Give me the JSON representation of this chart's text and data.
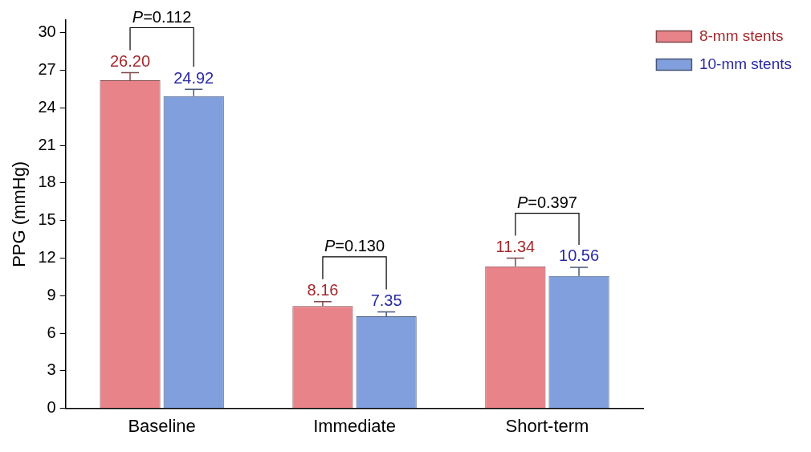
{
  "chart_data": {
    "type": "bar",
    "ylabel": "PPG (mmHg)",
    "categories": [
      "Baseline",
      "Immediate",
      "Short-term"
    ],
    "series": [
      {
        "name": "8-mm stents",
        "color": "#e8838a",
        "values": [
          26.2,
          8.16,
          11.34
        ],
        "errors": [
          0.6,
          0.35,
          0.65
        ],
        "value_labels": [
          "26.20",
          "8.16",
          "11.34"
        ]
      },
      {
        "name": "10-mm stents",
        "color": "#819fdc",
        "values": [
          24.92,
          7.35,
          10.56
        ],
        "errors": [
          0.55,
          0.35,
          0.7
        ],
        "value_labels": [
          "24.92",
          "7.35",
          "10.56"
        ]
      }
    ],
    "ylim": [
      0,
      31
    ],
    "yticks": [
      0,
      3,
      6,
      9,
      12,
      15,
      18,
      21,
      24,
      27,
      30
    ],
    "grid": false,
    "legend": "top right",
    "annotations": [
      "P=0.112",
      "P=0.130",
      "P=0.397"
    ]
  }
}
